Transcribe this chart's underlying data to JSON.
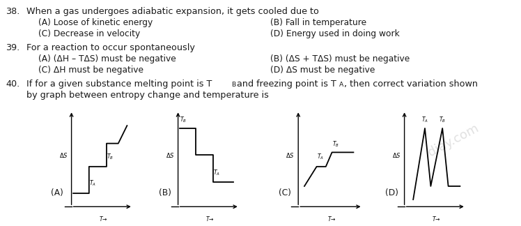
{
  "bg_color": "#ffffff",
  "text_color": "#1a1a1a",
  "q38_num": "38.",
  "q38_text": "When a gas undergoes adiabatic expansion, it gets cooled due to",
  "q38_A": "(A) Loose of kinetic energy",
  "q38_B": "(B) Fall in temperature",
  "q38_C": "(C) Decrease in velocity",
  "q38_D": "(D) Energy used in doing work",
  "q39_num": "39.",
  "q39_text": "For a reaction to occur spontaneously",
  "q39_A": "(A) (ΔH – TΔS) must be negative",
  "q39_B": "(B) (ΔS + TΔS) must be negative",
  "q39_C": "(C) ΔH must be negative",
  "q39_D": "(D) ΔS must be negative",
  "q40_num": "40.",
  "q40_text2": "by graph between entropy change and temperature is",
  "graph_label_A": "(A)",
  "graph_label_B": "(B)",
  "graph_label_C": "(C)",
  "graph_label_D": "(D)",
  "fs_main": 9.2,
  "fs_opt": 8.8,
  "fs_graph": 6.0,
  "fs_graph_label": 5.5
}
